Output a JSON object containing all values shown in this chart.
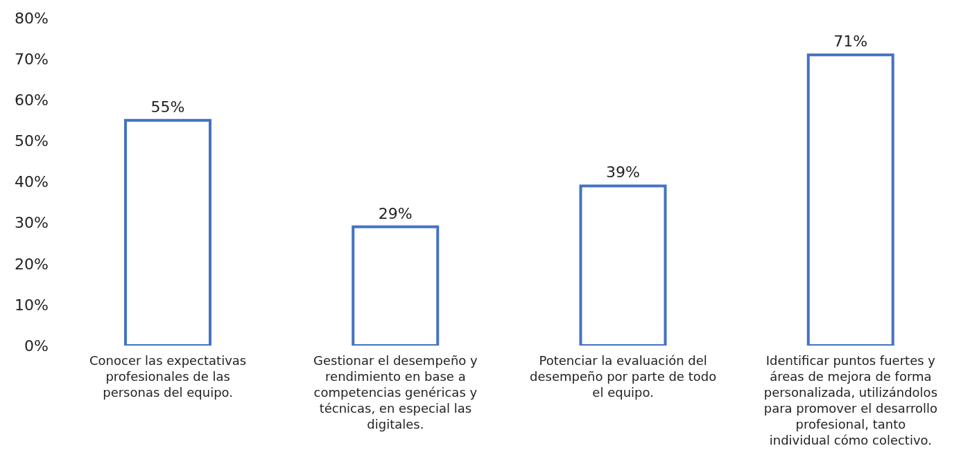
{
  "chart_data": {
    "type": "bar",
    "categories": [
      "Conocer las expectativas profesionales de las personas del equipo.",
      "Gestionar el desempeño y rendimiento en base a competencias genéricas y técnicas, en especial las digitales.",
      "Potenciar la evaluación del desempeño por parte de todo el equipo.",
      "Identificar puntos fuertes y áreas de mejora de forma personalizada, utilizándolos para promover el desarrollo profesional, tanto individual cómo colectivo."
    ],
    "values": [
      55,
      29,
      39,
      71
    ],
    "value_labels": [
      "55%",
      "29%",
      "39%",
      "71%"
    ],
    "color": "#4472c4",
    "ylim": [
      0,
      80
    ],
    "yticks": [
      {
        "value": 0,
        "label": "0%"
      },
      {
        "value": 10,
        "label": "10%"
      },
      {
        "value": 20,
        "label": "20%"
      },
      {
        "value": 30,
        "label": "30%"
      },
      {
        "value": 40,
        "label": "40%"
      },
      {
        "value": 50,
        "label": "50%"
      },
      {
        "value": 60,
        "label": "60%"
      },
      {
        "value": 70,
        "label": "70%"
      },
      {
        "value": 80,
        "label": "80%"
      }
    ],
    "grid": false,
    "legend": false
  }
}
